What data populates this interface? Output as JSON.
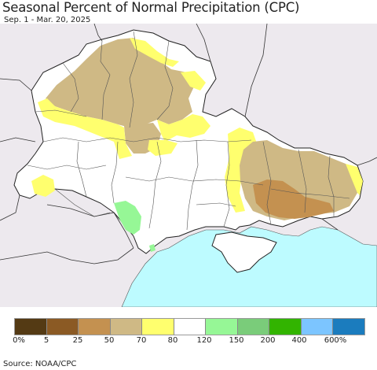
{
  "header": {
    "title": "Seasonal Percent of Normal Precipitation (CPC)",
    "date_range": "Sep. 1 - Mar. 20, 2025"
  },
  "map": {
    "region": "Ukraine",
    "sea_color": "#bdfbff",
    "outside_color": "#ede9ee",
    "border_color": "#333333"
  },
  "legend": {
    "colors": [
      "#543a14",
      "#8b5a24",
      "#c49150",
      "#cfb985",
      "#ffff6e",
      "#ffffff",
      "#96f796",
      "#7acc7a",
      "#32b400",
      "#7cc5ff",
      "#1b7cbe"
    ],
    "labels": [
      "0%",
      "5",
      "25",
      "50",
      "70",
      "80",
      "120",
      "150",
      "200",
      "400",
      "600%"
    ]
  },
  "footer": {
    "source": "Source: NOAA/CPC"
  }
}
